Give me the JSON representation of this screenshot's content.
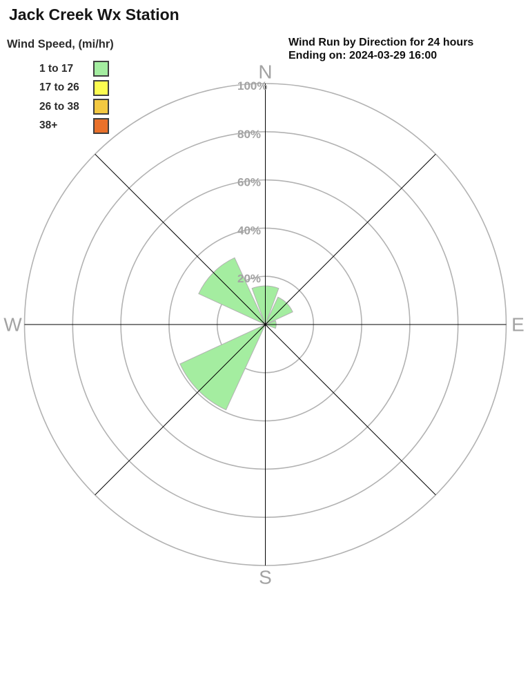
{
  "page_title": "Jack Creek Wx Station",
  "chart_header": {
    "line1": "Wind Run by Direction for 24 hours",
    "line2": "Ending on: 2024-03-29 16:00"
  },
  "legend": {
    "title": "Wind Speed, (mi/hr)",
    "items": [
      {
        "label": "1 to 17",
        "color": "#A4EDA0"
      },
      {
        "label": "17 to 26",
        "color": "#FCFC50"
      },
      {
        "label": "26 to 38",
        "color": "#F3C841"
      },
      {
        "label": "38+",
        "color": "#E9712B"
      }
    ],
    "swatch_border": "#3F3F3F"
  },
  "chart_data": {
    "type": "windrose",
    "title": "Wind Run by Direction for 24 hours",
    "subtitle": "Ending on: 2024-03-29 16:00",
    "value_unit": "% of 24-hour wind run",
    "directions": [
      "N",
      "NE",
      "E",
      "SE",
      "S",
      "SW",
      "W",
      "NW"
    ],
    "series": [
      {
        "name": "1 to 17",
        "color": "#A4EDA0",
        "values": [
          16,
          12.5,
          4.5,
          0,
          0,
          39,
          0,
          30.5
        ]
      },
      {
        "name": "17 to 26",
        "color": "#FCFC50",
        "values": [
          0,
          0,
          0,
          0,
          0,
          0,
          0,
          0
        ]
      },
      {
        "name": "26 to 38",
        "color": "#F3C841",
        "values": [
          0,
          0,
          0,
          0,
          0,
          0,
          0,
          0
        ]
      },
      {
        "name": "38+",
        "color": "#E9712B",
        "values": [
          0,
          0,
          0,
          0,
          0,
          0,
          0,
          0
        ]
      }
    ],
    "rings_percent": [
      20,
      40,
      60,
      80,
      100
    ],
    "ring_labels": [
      "20%",
      "40%",
      "60%",
      "80%",
      "100%"
    ],
    "compass": [
      {
        "label": "N",
        "bearing": 0
      },
      {
        "label": "E",
        "bearing": 90
      },
      {
        "label": "S",
        "bearing": 180
      },
      {
        "label": "W",
        "bearing": 270
      }
    ],
    "rlim": [
      0,
      100
    ],
    "grid": true,
    "legend_position": "top-left",
    "colors": {
      "ring": "#B2B2B2",
      "spoke": "#000000",
      "axis_label": "#A3A3A3",
      "petal_outline": "#B2B2B2"
    }
  }
}
